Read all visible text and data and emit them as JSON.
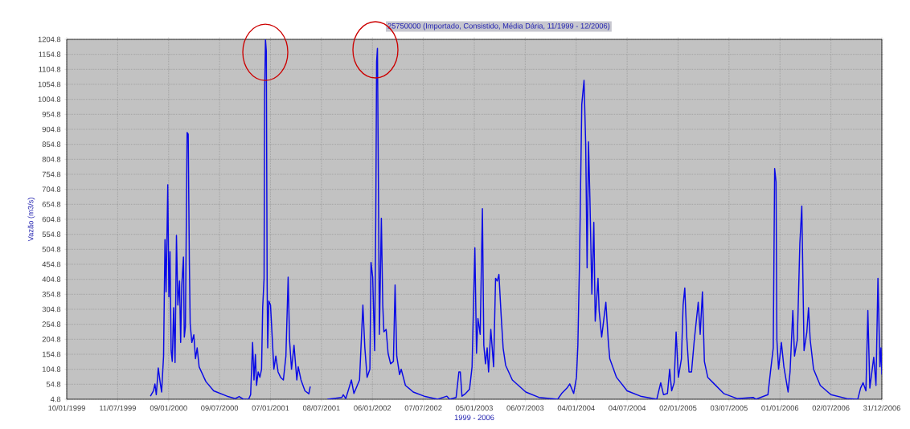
{
  "chart_data": {
    "type": "line",
    "title": "25750000 (Importado, Consistido, Média Dária, 11/1999 - 12/2006)",
    "xlabel": "1999 - 2006",
    "ylabel": "Vazão (m3/s)",
    "x": [
      "1999-11-05",
      "1999-11-16",
      "1999-11-21",
      "1999-11-26",
      "1999-12-03",
      "1999-12-10",
      "1999-12-15",
      "1999-12-22",
      "1999-12-27",
      "1999-12-31",
      "2000-01-06",
      "2000-01-10",
      "2000-01-14",
      "2000-01-18",
      "2000-01-22",
      "2000-01-27",
      "2000-02-01",
      "2000-02-06",
      "2000-02-11",
      "2000-02-17",
      "2000-02-21",
      "2000-02-25",
      "2000-03-02",
      "2000-03-05",
      "2000-03-09",
      "2000-03-15",
      "2000-03-19",
      "2000-03-23",
      "2000-03-26",
      "2000-04-01",
      "2000-04-08",
      "2000-04-14",
      "2000-04-20",
      "2000-04-27",
      "2000-05-21",
      "2000-06-18",
      "2000-08-05",
      "2000-09-03",
      "2000-09-17",
      "2000-10-02",
      "2000-10-21",
      "2000-10-28",
      "2000-11-04",
      "2000-11-09",
      "2000-11-14",
      "2000-11-18",
      "2000-11-24",
      "2000-11-30",
      "2000-12-06",
      "2000-12-10",
      "2000-12-15",
      "2000-12-17",
      "2000-12-20",
      "2000-12-23",
      "2000-12-26",
      "2000-12-28",
      "2001-01-01",
      "2001-01-07",
      "2001-01-13",
      "2001-01-19",
      "2001-01-26",
      "2001-02-03",
      "2001-02-12",
      "2001-02-22",
      "2001-03-03",
      "2001-03-11",
      "2001-03-16",
      "2001-03-23",
      "2001-04-01",
      "2001-04-11",
      "2001-04-16",
      "2001-04-26",
      "2001-05-10",
      "2001-05-24",
      "2001-05-29",
      "2001-06-28",
      "2001-07-29",
      "2001-09-19",
      "2001-09-24",
      "2001-10-03",
      "2001-10-23",
      "2001-11-01",
      "2001-11-21",
      "2001-12-03",
      "2001-12-10",
      "2001-12-18",
      "2001-12-28",
      "2002-01-01",
      "2002-01-07",
      "2002-01-14",
      "2002-01-18",
      "2002-01-21",
      "2002-01-24",
      "2002-01-27",
      "2002-01-31",
      "2002-02-07",
      "2002-02-12",
      "2002-02-16",
      "2002-02-24",
      "2002-03-03",
      "2002-03-12",
      "2002-03-22",
      "2002-03-28",
      "2002-04-03",
      "2002-04-13",
      "2002-04-19",
      "2002-05-04",
      "2002-06-01",
      "2002-07-10",
      "2002-08-27",
      "2002-09-29",
      "2002-10-09",
      "2002-11-01",
      "2002-11-11",
      "2002-11-16",
      "2002-11-22",
      "2002-12-05",
      "2002-12-19",
      "2002-12-28",
      "2003-01-07",
      "2003-01-13",
      "2003-01-18",
      "2003-01-26",
      "2003-02-03",
      "2003-02-08",
      "2003-02-14",
      "2003-02-20",
      "2003-02-25",
      "2003-03-05",
      "2003-03-15",
      "2003-03-22",
      "2003-03-28",
      "2003-04-03",
      "2003-04-11",
      "2003-04-18",
      "2003-04-27",
      "2003-05-21",
      "2003-07-08",
      "2003-08-24",
      "2003-10-30",
      "2003-11-13",
      "2003-12-02",
      "2003-12-12",
      "2003-12-26",
      "2004-01-05",
      "2004-01-10",
      "2004-01-16",
      "2004-01-24",
      "2004-02-01",
      "2004-02-07",
      "2004-02-12",
      "2004-02-17",
      "2004-02-22",
      "2004-02-29",
      "2004-03-07",
      "2004-03-12",
      "2004-03-22",
      "2004-03-26",
      "2004-04-04",
      "2004-04-19",
      "2004-04-28",
      "2004-05-03",
      "2004-05-27",
      "2004-07-04",
      "2004-08-21",
      "2004-10-18",
      "2004-11-01",
      "2004-11-11",
      "2004-11-25",
      "2004-12-03",
      "2004-12-10",
      "2004-12-19",
      "2004-12-26",
      "2005-01-03",
      "2005-01-14",
      "2005-01-20",
      "2005-01-26",
      "2005-02-02",
      "2005-02-10",
      "2005-02-19",
      "2005-03-01",
      "2005-03-15",
      "2005-03-22",
      "2005-03-30",
      "2005-04-06",
      "2005-04-18",
      "2005-05-07",
      "2005-06-14",
      "2005-08-01",
      "2005-09-27",
      "2005-10-07",
      "2005-11-19",
      "2005-11-28",
      "2005-12-08",
      "2005-12-13",
      "2005-12-18",
      "2005-12-21",
      "2005-12-27",
      "2006-01-06",
      "2006-01-15",
      "2006-01-30",
      "2006-02-06",
      "2006-02-16",
      "2006-02-22",
      "2006-03-04",
      "2006-03-13",
      "2006-03-20",
      "2006-03-28",
      "2006-04-07",
      "2006-04-13",
      "2006-04-19",
      "2006-05-01",
      "2006-05-25",
      "2006-07-02",
      "2006-08-28",
      "2006-10-06",
      "2006-10-16",
      "2006-10-25",
      "2006-11-04",
      "2006-11-11",
      "2006-11-18",
      "2006-12-02",
      "2006-12-10",
      "2006-12-17",
      "2006-12-24",
      "2006-12-28",
      "2006-12-31"
    ],
    "values": [
      15,
      33,
      56,
      20,
      109,
      60,
      29,
      149,
      537,
      363,
      720,
      346,
      497,
      167,
      131,
      310,
      127,
      551,
      319,
      399,
      194,
      385,
      479,
      212,
      247,
      894,
      889,
      470,
      256,
      194,
      220,
      140,
      176,
      113,
      64,
      33,
      15,
      7,
      14,
      5,
      5,
      20,
      194,
      69,
      154,
      51,
      96,
      78,
      105,
      310,
      408,
      1024,
      1204,
      1166,
      381,
      176,
      332,
      319,
      212,
      105,
      149,
      96,
      78,
      69,
      149,
      412,
      203,
      105,
      185,
      69,
      113,
      69,
      33,
      23,
      47,
      null,
      5,
      11,
      20,
      7,
      69,
      24,
      69,
      319,
      176,
      78,
      105,
      461,
      412,
      167,
      604,
      1130,
      1175,
      783,
      221,
      608,
      319,
      230,
      238,
      158,
      123,
      131,
      386,
      149,
      87,
      105,
      51,
      29,
      15,
      5,
      15,
      5,
      11,
      96,
      96,
      15,
      24,
      38,
      113,
      510,
      158,
      274,
      221,
      640,
      185,
      123,
      176,
      96,
      238,
      113,
      408,
      399,
      421,
      283,
      176,
      118,
      69,
      29,
      11,
      5,
      24,
      42,
      56,
      24,
      78,
      185,
      470,
      988,
      1068,
      854,
      443,
      863,
      675,
      355,
      595,
      265,
      408,
      300,
      212,
      328,
      194,
      140,
      78,
      33,
      15,
      5,
      60,
      20,
      24,
      105,
      33,
      60,
      229,
      78,
      140,
      319,
      376,
      212,
      96,
      96,
      203,
      328,
      221,
      363,
      131,
      78,
      60,
      24,
      7,
      11,
      5,
      20,
      96,
      176,
      774,
      730,
      203,
      105,
      194,
      113,
      29,
      96,
      301,
      149,
      203,
      524,
      649,
      167,
      229,
      310,
      203,
      105,
      51,
      20,
      7,
      5,
      42,
      60,
      33,
      301,
      42,
      145,
      51,
      408,
      113,
      176,
      87
    ],
    "color": "#0a0ae6",
    "xlim": [
      "1999-01-10",
      "2006-12-31"
    ],
    "xticks": [
      {
        "value": "1999-01-10",
        "label": "10/01/1999"
      },
      {
        "value": "1999-07-11",
        "label": "11/07/1999"
      },
      {
        "value": "2000-01-09",
        "label": "09/01/2000"
      },
      {
        "value": "2000-07-09",
        "label": "09/07/2000"
      },
      {
        "value": "2001-01-07",
        "label": "07/01/2001"
      },
      {
        "value": "2001-07-08",
        "label": "08/07/2001"
      },
      {
        "value": "2002-01-06",
        "label": "06/01/2002"
      },
      {
        "value": "2002-07-07",
        "label": "07/07/2002"
      },
      {
        "value": "2003-01-05",
        "label": "05/01/2003"
      },
      {
        "value": "2003-07-06",
        "label": "06/07/2003"
      },
      {
        "value": "2004-01-04",
        "label": "04/01/2004"
      },
      {
        "value": "2004-07-04",
        "label": "04/07/2004"
      },
      {
        "value": "2005-01-02",
        "label": "02/01/2005"
      },
      {
        "value": "2005-07-03",
        "label": "03/07/2005"
      },
      {
        "value": "2006-01-01",
        "label": "01/01/2006"
      },
      {
        "value": "2006-07-02",
        "label": "02/07/2006"
      },
      {
        "value": "2006-12-31",
        "label": "31/12/2006"
      }
    ],
    "ylim": [
      4.8,
      1204.8
    ],
    "yticks": [
      4.8,
      54.8,
      104.8,
      154.8,
      204.8,
      254.8,
      304.8,
      354.8,
      404.8,
      454.8,
      504.8,
      554.8,
      604.8,
      654.8,
      704.8,
      754.8,
      804.8,
      854.8,
      904.8,
      954.8,
      1004.8,
      1054.8,
      1104.8,
      1154.8,
      1204.8
    ],
    "grid": true
  }
}
